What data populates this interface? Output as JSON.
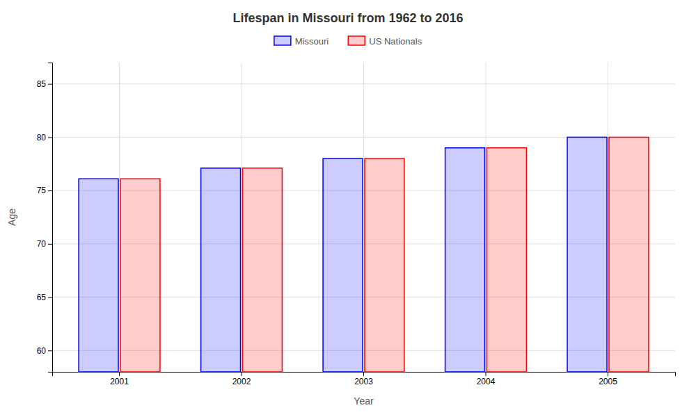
{
  "chart_data": {
    "type": "bar",
    "title": "Lifespan in Missouri from 1962 to 2016",
    "x_label": "Year",
    "y_label": "Age",
    "categories": [
      "2001",
      "2002",
      "2003",
      "2004",
      "2005"
    ],
    "series": [
      {
        "name": "Missouri",
        "color": "#0000ff",
        "values": [
          76.1,
          77.1,
          78.0,
          79.0,
          80.0
        ]
      },
      {
        "name": "US Nationals",
        "color": "#ff0000",
        "values": [
          76.1,
          77.1,
          78.0,
          79.0,
          80.0
        ]
      }
    ],
    "ylim": [
      58,
      87
    ],
    "yticks": [
      60,
      65,
      70,
      75,
      80,
      85
    ],
    "grid": true,
    "legend": "top"
  }
}
